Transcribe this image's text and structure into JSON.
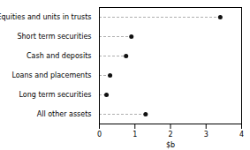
{
  "chart_data": {
    "type": "lollipop",
    "orientation": "horizontal",
    "categories": [
      "All other assets",
      "Long term securities",
      "Loans and placements",
      "Cash and deposits",
      "Short term securities",
      "Equities and units in trusts"
    ],
    "values": [
      1.3,
      0.2,
      0.3,
      0.75,
      0.9,
      3.4
    ],
    "xlabel": "$b",
    "xlim": [
      0,
      4
    ],
    "xticks": [
      0,
      1,
      2,
      3,
      4
    ],
    "color": "#111111",
    "grid": false
  }
}
